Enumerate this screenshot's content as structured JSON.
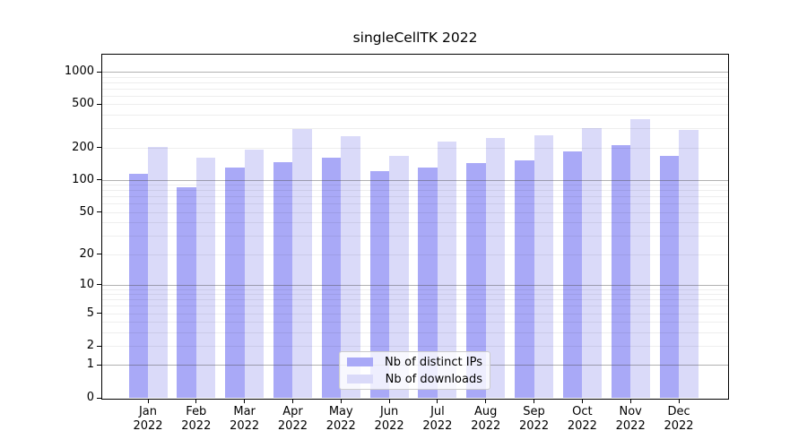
{
  "chart_data": {
    "type": "bar",
    "title": "singleCellTK 2022",
    "categories": [
      "Jan 2022",
      "Feb 2022",
      "Mar 2022",
      "Apr 2022",
      "May 2022",
      "Jun 2022",
      "Jul 2022",
      "Aug 2022",
      "Sep 2022",
      "Oct 2022",
      "Nov 2022",
      "Dec 2022"
    ],
    "series": [
      {
        "name": "Nb of distinct IPs",
        "color": "#a9a9f7",
        "values": [
          115,
          85,
          130,
          146,
          161,
          121,
          130,
          144,
          151,
          184,
          211,
          168
        ]
      },
      {
        "name": "Nb of downloads",
        "color": "#dadaf9",
        "values": [
          204,
          161,
          191,
          296,
          256,
          166,
          225,
          247,
          260,
          299,
          366,
          288
        ]
      }
    ],
    "xlabel": "",
    "ylabel": "",
    "yscale": "log1p",
    "y_ticks": [
      0,
      1,
      2,
      5,
      10,
      20,
      50,
      100,
      200,
      500,
      1000
    ],
    "ylim": [
      0,
      1460
    ],
    "grid": "horizontal major+minor",
    "legend_position": "lower center"
  }
}
